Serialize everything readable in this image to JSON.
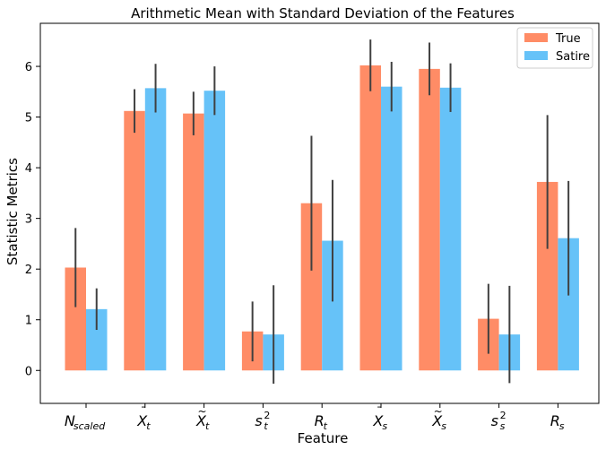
{
  "chart_data": {
    "type": "bar",
    "title": "Arithmetic Mean with Standard Deviation of the Features",
    "xlabel": "Feature",
    "ylabel": "Statistic Metrics",
    "ylim": [
      -0.65,
      6.85
    ],
    "yticks": [
      0,
      1,
      2,
      3,
      4,
      5,
      6
    ],
    "grid": false,
    "legend_position": "top-right",
    "categories": [
      {
        "base": "N",
        "sub": "scaled",
        "sup": "",
        "accent": ""
      },
      {
        "base": "X",
        "sub": "t",
        "sup": "",
        "accent": "¯"
      },
      {
        "base": "X",
        "sub": "t",
        "sup": "",
        "accent": "~"
      },
      {
        "base": "s",
        "sub": "t",
        "sup": "2",
        "accent": ""
      },
      {
        "base": "R",
        "sub": "t",
        "sup": "",
        "accent": ""
      },
      {
        "base": "X",
        "sub": "s",
        "sup": "",
        "accent": "¯"
      },
      {
        "base": "X",
        "sub": "s",
        "sup": "",
        "accent": "~"
      },
      {
        "base": "s",
        "sub": "s",
        "sup": "2",
        "accent": ""
      },
      {
        "base": "R",
        "sub": "s",
        "sup": "",
        "accent": ""
      }
    ],
    "series": [
      {
        "name": "True",
        "color": "#FF8C66",
        "values": [
          2.03,
          5.12,
          5.07,
          0.77,
          3.3,
          6.02,
          5.95,
          1.02,
          3.72
        ],
        "errors": [
          0.78,
          0.43,
          0.43,
          0.59,
          1.33,
          0.51,
          0.52,
          0.69,
          1.32
        ]
      },
      {
        "name": "Satire",
        "color": "#66C2F8",
        "values": [
          1.21,
          5.57,
          5.52,
          0.71,
          2.56,
          5.6,
          5.58,
          0.71,
          2.61
        ],
        "errors": [
          0.41,
          0.48,
          0.48,
          0.97,
          1.2,
          0.49,
          0.48,
          0.96,
          1.13
        ]
      }
    ]
  }
}
